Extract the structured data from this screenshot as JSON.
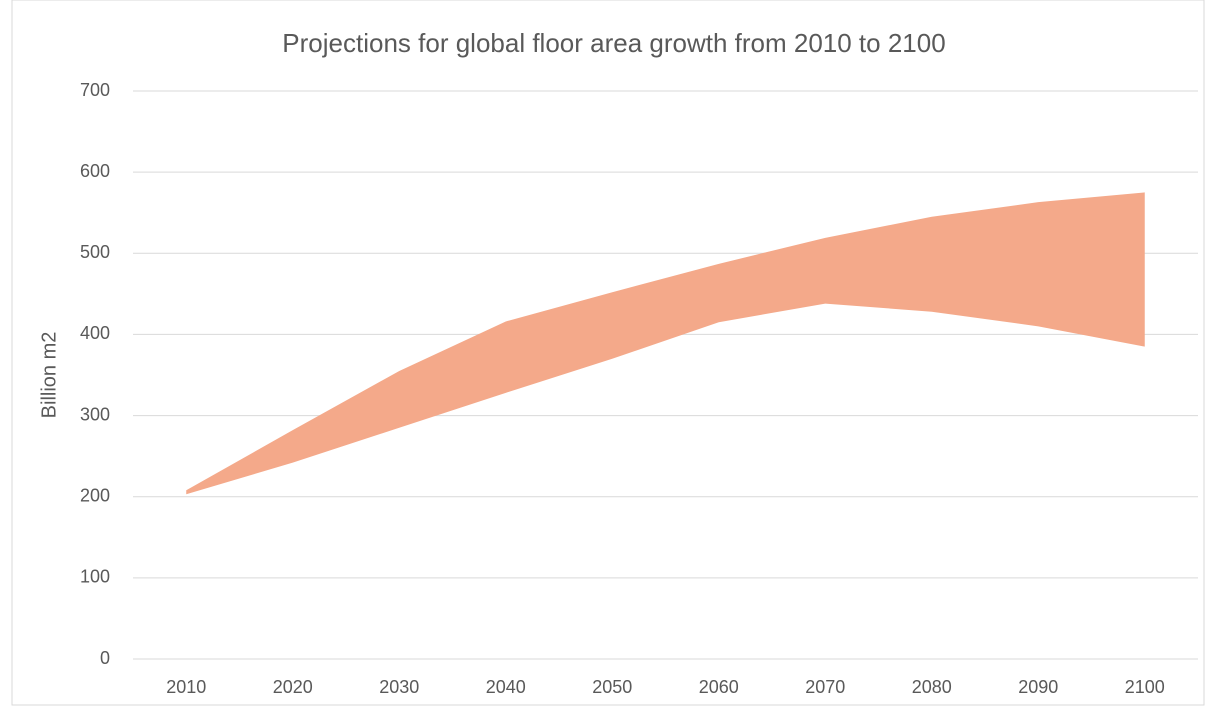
{
  "chart_data": {
    "type": "range_area",
    "title": "Projections for global floor area growth from 2010 to 2100",
    "y_label": "Billion m2",
    "categories": [
      "2010",
      "2020",
      "2030",
      "2040",
      "2050",
      "2060",
      "2070",
      "2080",
      "2090",
      "2100"
    ],
    "high": [
      208,
      282,
      355,
      416,
      452,
      487,
      519,
      545,
      563,
      575
    ],
    "low": [
      203,
      242,
      285,
      328,
      370,
      415,
      438,
      428,
      410,
      385
    ],
    "color": "#f4a98a",
    "ylim": [
      0,
      700
    ],
    "yticks": [
      0,
      100,
      200,
      300,
      400,
      500,
      600,
      700
    ],
    "grid": true
  }
}
